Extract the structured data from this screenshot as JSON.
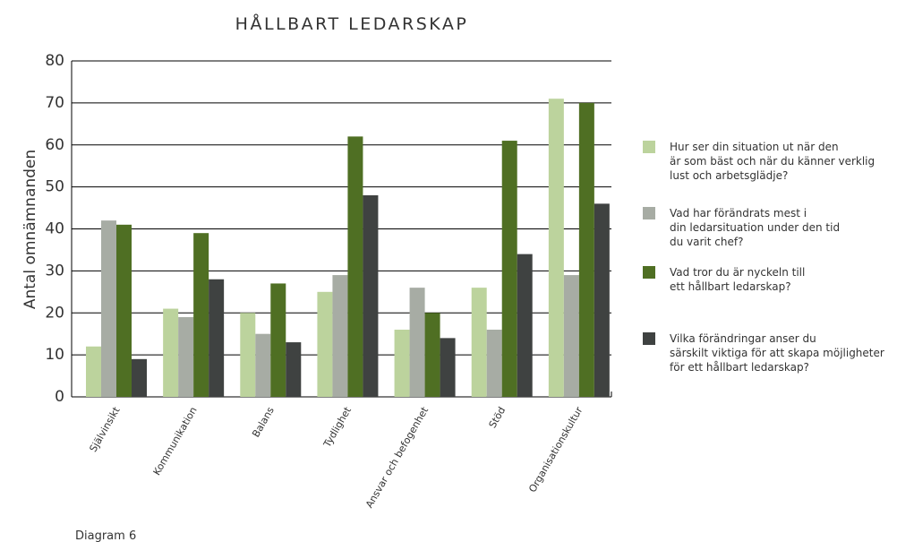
{
  "chart_data": {
    "type": "bar",
    "title": "HÅLLBART LEDARSKAP",
    "y_label": "Antal omnämnanden",
    "caption": "Diagram 6",
    "categories": [
      "Självinsikt",
      "Kommunikation",
      "Balans",
      "Tydlighet",
      "Ansvar och befogenhet",
      "Stöd",
      "Organisationskultur"
    ],
    "series": [
      {
        "name": "Hur ser din situation ut när den\när som bäst och när du känner verklig\nlust och arbetsglädje?",
        "color": "#bcd39d",
        "values": [
          12,
          21,
          20,
          25,
          16,
          26,
          71
        ]
      },
      {
        "name": "Vad har förändrats mest i\ndin ledarsituation under den tid\ndu varit chef?",
        "color": "#a7aca4",
        "values": [
          42,
          19,
          15,
          29,
          26,
          16,
          29
        ]
      },
      {
        "name": "Vad tror du är nyckeln till\nett hållbart ledarskap?",
        "color": "#4f6f23",
        "values": [
          41,
          39,
          27,
          62,
          20,
          61,
          70
        ]
      },
      {
        "name": "Vilka förändringar anser du\nsärskilt viktiga för att skapa möjligheter\nför ett hållbart ledarskap?",
        "color": "#3f4241",
        "values": [
          9,
          28,
          13,
          48,
          14,
          34,
          46
        ]
      }
    ],
    "ylim": [
      0,
      80
    ],
    "yticks": [
      0,
      10,
      20,
      30,
      40,
      50,
      60,
      70,
      80
    ],
    "grid": true,
    "legend": "right"
  }
}
